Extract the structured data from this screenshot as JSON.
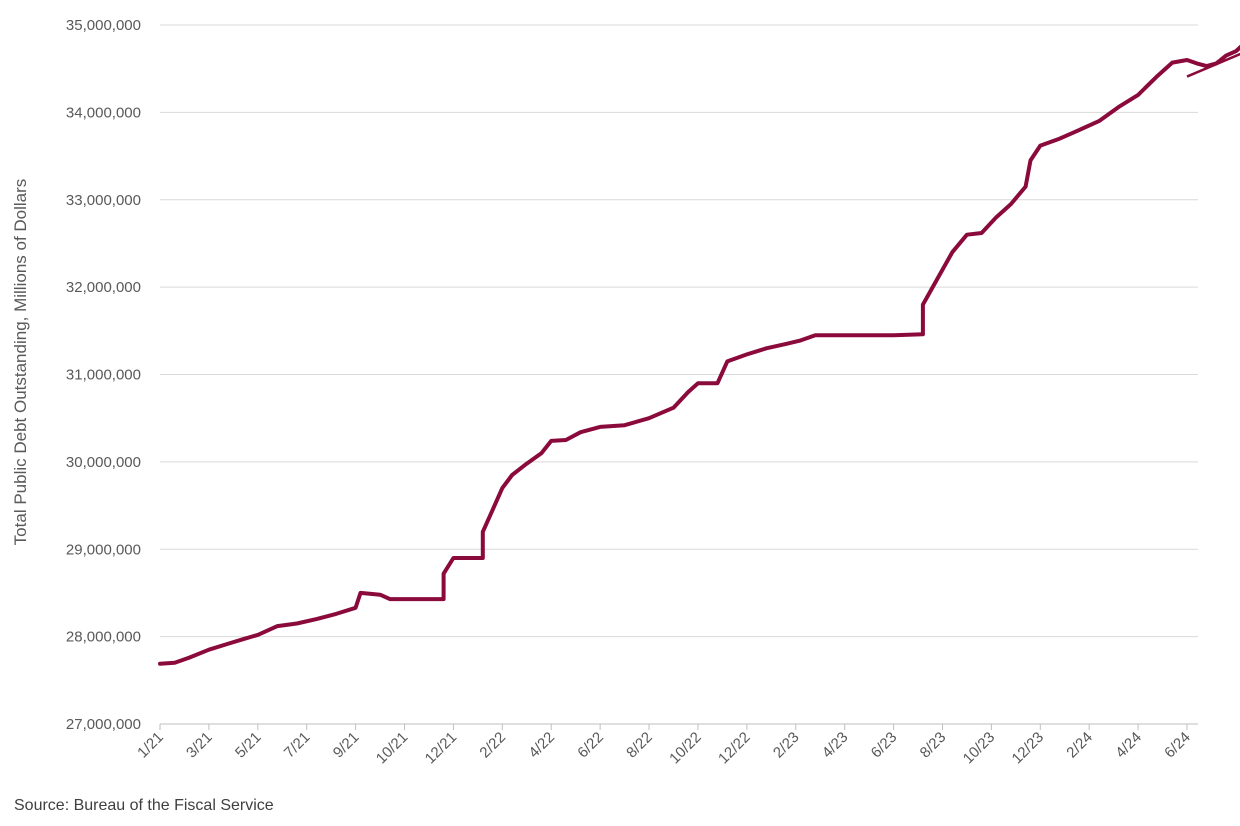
{
  "chart_data": {
    "type": "line",
    "ylabel": "Total Public Debt Outstanding, Millions of Dollars",
    "ylim": [
      27000000,
      35000000
    ],
    "y_ticks": [
      27000000,
      28000000,
      29000000,
      30000000,
      31000000,
      32000000,
      33000000,
      34000000,
      35000000
    ],
    "y_tick_labels": [
      "27,000,000",
      "28,000,000",
      "29,000,000",
      "30,000,000",
      "31,000,000",
      "32,000,000",
      "33,000,000",
      "34,000,000",
      "35,000,000"
    ],
    "x_tick_labels": [
      "1/21",
      "3/21",
      "5/21",
      "7/21",
      "9/21",
      "10/21",
      "12/21",
      "2/22",
      "4/22",
      "6/22",
      "8/22",
      "10/22",
      "12/22",
      "2/23",
      "4/23",
      "6/23",
      "8/23",
      "10/23",
      "12/23",
      "2/24",
      "4/24",
      "6/24"
    ],
    "grid": "horizontal",
    "series": [
      {
        "color": "#8b0a3c",
        "points": [
          [
            0.0,
            27690000
          ],
          [
            0.3,
            27700000
          ],
          [
            0.6,
            27760000
          ],
          [
            1.0,
            27850000
          ],
          [
            1.4,
            27920000
          ],
          [
            1.7,
            27970000
          ],
          [
            2.0,
            28020000
          ],
          [
            2.4,
            28120000
          ],
          [
            2.8,
            28150000
          ],
          [
            3.2,
            28200000
          ],
          [
            3.6,
            28260000
          ],
          [
            4.0,
            28330000
          ],
          [
            4.1,
            28500000
          ],
          [
            4.5,
            28480000
          ],
          [
            4.7,
            28430000
          ],
          [
            5.0,
            28430000
          ],
          [
            5.5,
            28430000
          ],
          [
            5.8,
            28430000
          ],
          [
            5.8,
            28720000
          ],
          [
            6.0,
            28900000
          ],
          [
            6.6,
            28900000
          ],
          [
            6.6,
            29200000
          ],
          [
            6.8,
            29450000
          ],
          [
            7.0,
            29700000
          ],
          [
            7.2,
            29850000
          ],
          [
            7.5,
            29980000
          ],
          [
            7.8,
            30100000
          ],
          [
            8.0,
            30240000
          ],
          [
            8.3,
            30250000
          ],
          [
            8.6,
            30340000
          ],
          [
            9.0,
            30400000
          ],
          [
            9.5,
            30420000
          ],
          [
            10.0,
            30500000
          ],
          [
            10.5,
            30620000
          ],
          [
            10.8,
            30800000
          ],
          [
            11.0,
            30900000
          ],
          [
            11.4,
            30900000
          ],
          [
            11.6,
            31150000
          ],
          [
            12.0,
            31230000
          ],
          [
            12.4,
            31300000
          ],
          [
            12.8,
            31350000
          ],
          [
            13.1,
            31390000
          ],
          [
            13.4,
            31450000
          ],
          [
            14.0,
            31450000
          ],
          [
            15.0,
            31450000
          ],
          [
            15.6,
            31460000
          ],
          [
            15.6,
            31800000
          ],
          [
            15.8,
            32000000
          ],
          [
            16.2,
            32400000
          ],
          [
            16.5,
            32600000
          ],
          [
            16.8,
            32620000
          ],
          [
            17.1,
            32800000
          ],
          [
            17.4,
            32950000
          ],
          [
            17.7,
            33150000
          ],
          [
            17.8,
            33450000
          ],
          [
            18.0,
            33620000
          ],
          [
            18.4,
            33700000
          ],
          [
            18.8,
            33800000
          ],
          [
            19.2,
            33900000
          ],
          [
            19.6,
            34060000
          ],
          [
            20.0,
            34200000
          ],
          [
            20.4,
            34420000
          ],
          [
            20.7,
            34570000
          ],
          [
            21.0,
            34600000
          ],
          [
            21.2,
            34560000
          ],
          [
            21.4,
            34530000
          ],
          [
            21.6,
            34560000
          ],
          [
            21.8,
            34650000
          ],
          [
            22.0,
            34700000
          ],
          [
            22.1,
            34750000
          ]
        ]
      }
    ],
    "annotations": [
      {
        "type": "arrow",
        "from": [
          21.0,
          34410000
        ],
        "to": [
          22.9,
          34860000
        ]
      }
    ]
  },
  "source_text": "Source: Bureau of the Fiscal Service",
  "colors": {
    "line": "#8b0a3c",
    "grid": "#d9d9d9",
    "axis": "#bfbfbf",
    "text": "#595959"
  }
}
